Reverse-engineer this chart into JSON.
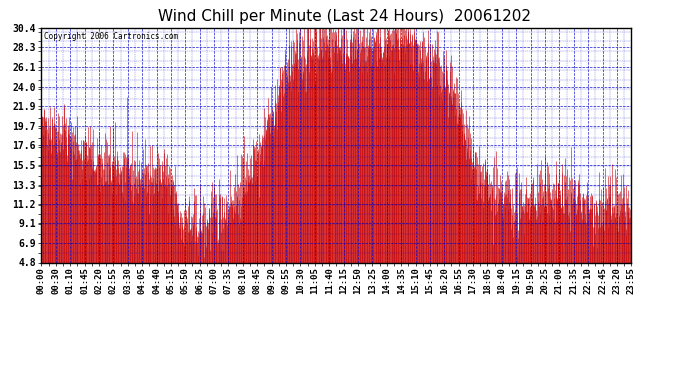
{
  "title": "Wind Chill per Minute (Last 24 Hours)  20061202",
  "copyright_text": "Copyright 2006 Cartronics.com",
  "yticks": [
    4.8,
    6.9,
    9.1,
    11.2,
    13.3,
    15.5,
    17.6,
    19.7,
    21.9,
    24.0,
    26.1,
    28.3,
    30.4
  ],
  "ymin": 4.8,
  "ymax": 30.4,
  "line_color": "#cc0000",
  "bg_color": "#ffffff",
  "plot_bg_color": "#ffffff",
  "grid_color": "#0000cc",
  "title_fontsize": 11,
  "tick_fontsize": 7,
  "xtick_labels": [
    "00:00",
    "00:30",
    "01:10",
    "01:45",
    "02:20",
    "02:55",
    "03:30",
    "04:05",
    "04:40",
    "05:15",
    "05:50",
    "06:25",
    "07:00",
    "07:35",
    "08:10",
    "08:45",
    "09:20",
    "09:55",
    "10:30",
    "11:05",
    "11:40",
    "12:15",
    "12:50",
    "13:25",
    "14:00",
    "14:35",
    "15:10",
    "15:45",
    "16:20",
    "16:55",
    "17:30",
    "18:05",
    "18:40",
    "19:15",
    "19:50",
    "20:25",
    "21:00",
    "21:35",
    "22:10",
    "22:45",
    "23:20",
    "23:55"
  ]
}
